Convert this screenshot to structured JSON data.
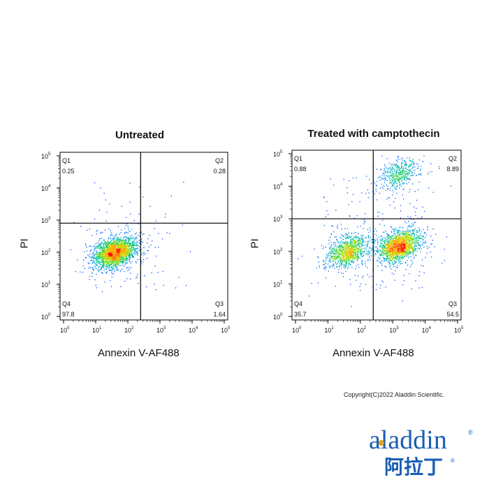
{
  "chart_data": [
    {
      "type": "scatter",
      "title": "Untreated",
      "xlabel": "Annexin V-AF488",
      "ylabel": "PI",
      "x_scale": "log",
      "y_scale": "log",
      "xlim": [
        1,
        100000
      ],
      "ylim": [
        1,
        100000
      ],
      "x_ticks": [
        "10",
        "10",
        "10",
        "10",
        "10",
        "10"
      ],
      "x_tick_exponents": [
        "0",
        "1",
        "2",
        "3",
        "4",
        "5"
      ],
      "y_ticks": [
        "10",
        "10",
        "10",
        "10",
        "10",
        "10"
      ],
      "y_tick_exponents": [
        "0",
        "1",
        "2",
        "3",
        "4",
        "5"
      ],
      "gates": {
        "x": 250,
        "y": 800
      },
      "quadrants": [
        {
          "name": "Q1",
          "value": "0.25"
        },
        {
          "name": "Q2",
          "value": "0.28"
        },
        {
          "name": "Q3",
          "value": "1.64"
        },
        {
          "name": "Q4",
          "value": "97.8"
        }
      ],
      "populations": [
        {
          "center": [
            40,
            100
          ],
          "count": 2200
        }
      ]
    },
    {
      "type": "scatter",
      "title": "Treated with camptothecin",
      "xlabel": "Annexin V-AF488",
      "ylabel": "PI",
      "x_scale": "log",
      "y_scale": "log",
      "xlim": [
        1,
        100000
      ],
      "ylim": [
        1,
        100000
      ],
      "x_ticks": [
        "10",
        "10",
        "10",
        "10",
        "10",
        "10"
      ],
      "x_tick_exponents": [
        "0",
        "1",
        "2",
        "3",
        "4",
        "5"
      ],
      "y_ticks": [
        "10",
        "10",
        "10",
        "10",
        "10",
        "10"
      ],
      "y_tick_exponents": [
        "0",
        "1",
        "2",
        "3",
        "4",
        "5"
      ],
      "gates": {
        "x": 250,
        "y": 1000
      },
      "quadrants": [
        {
          "name": "Q1",
          "value": "0.88"
        },
        {
          "name": "Q2",
          "value": "8.89"
        },
        {
          "name": "Q3",
          "value": "54.5"
        },
        {
          "name": "Q4",
          "value": "35.7"
        }
      ],
      "populations": [
        {
          "center": [
            40,
            100
          ],
          "count": 1000
        },
        {
          "center": [
            1500,
            150
          ],
          "count": 1600
        },
        {
          "center": [
            1500,
            25000
          ],
          "count": 450
        }
      ]
    }
  ],
  "footer": {
    "copyright": "Copyright(C)2022 Aladdin Scientific.",
    "logo_latin": "aladdin",
    "logo_cjk": "阿拉丁"
  },
  "colors": {
    "density_low": "#1a1aff",
    "density_mid": "#00cc66",
    "density_high": "#ff2000",
    "logo_blue": "#1a5fb4",
    "logo_gold": "#e0a020"
  }
}
